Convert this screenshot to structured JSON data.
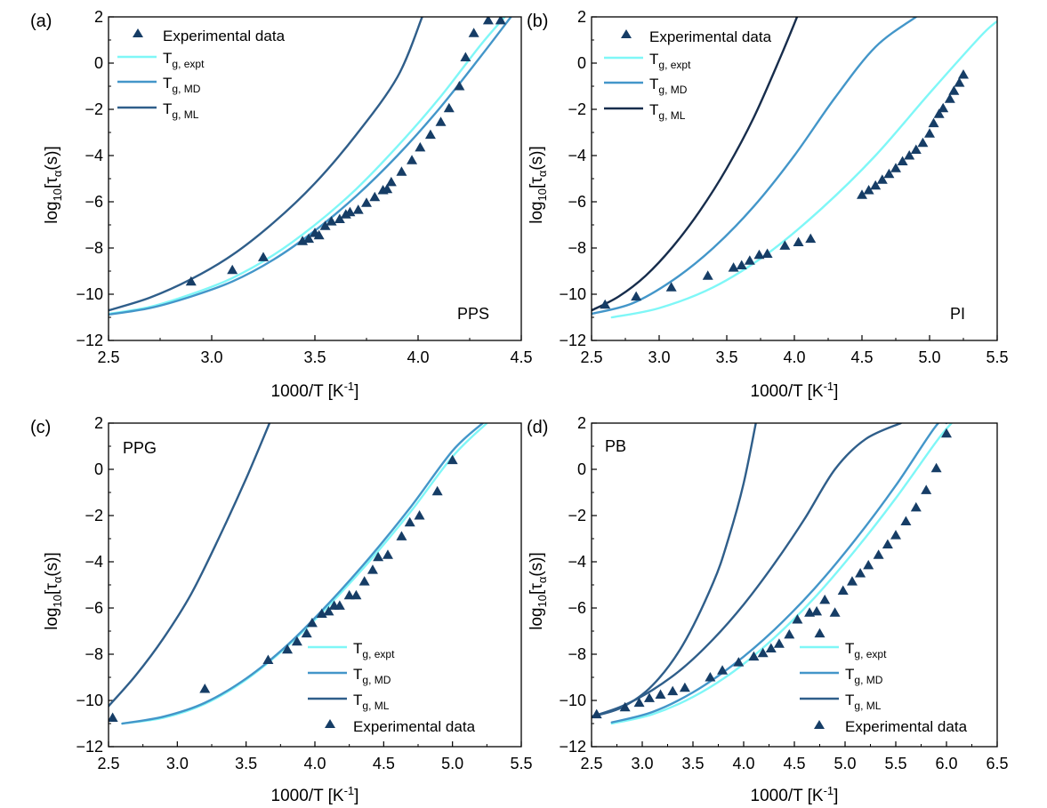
{
  "colors": {
    "expt": "#7ff7f7",
    "md": "#4396c9",
    "ml_a": "#2f5e8a",
    "ml_b": "#172d4c",
    "ml_c": "#2f5e8a",
    "ml_d": "#2f5e8a",
    "marker": "#163d66"
  },
  "chart_data": [
    {
      "type": "scatter",
      "panel_label": "(a)",
      "sample": "PPS",
      "xlabel": "1000/T [K⁻¹]",
      "ylabel": "log₁₀[τα(s)]",
      "xlim": [
        2.5,
        4.5
      ],
      "ylim": [
        -12,
        2
      ],
      "xticks": [
        2.5,
        3.0,
        3.5,
        4.0,
        4.5
      ],
      "xtick_labels": [
        "2.5",
        "3.0",
        "3.5",
        "4.0",
        "4.5"
      ],
      "yticks": [
        -12,
        -10,
        -8,
        -6,
        -4,
        -2,
        0,
        2
      ],
      "ytick_labels": [
        "−12",
        "−10",
        "−8",
        "−6",
        "−4",
        "−2",
        "0",
        "2"
      ],
      "legend_position": "top-left",
      "legend_order": [
        "scatter",
        "expt",
        "md",
        "ml"
      ],
      "legend": {
        "scatter": "Experimental data",
        "expt_main": "T",
        "expt_sub": "g, expt",
        "md_main": "T",
        "md_sub": "g, MD",
        "ml_main": "T",
        "ml_sub": "g, ML"
      },
      "scatter": {
        "name": "Experimental data",
        "x": [
          2.9,
          3.1,
          3.25,
          3.44,
          3.47,
          3.5,
          3.52,
          3.55,
          3.58,
          3.62,
          3.65,
          3.67,
          3.71,
          3.75,
          3.79,
          3.83,
          3.85,
          3.87,
          3.92,
          3.97,
          4.01,
          4.06,
          4.11,
          4.15,
          4.2,
          4.23,
          4.27,
          4.34,
          4.4
        ],
        "y": [
          -9.45,
          -8.95,
          -8.4,
          -7.7,
          -7.6,
          -7.35,
          -7.45,
          -7.05,
          -6.85,
          -6.75,
          -6.55,
          -6.45,
          -6.35,
          -6.05,
          -5.8,
          -5.5,
          -5.45,
          -5.15,
          -4.7,
          -4.2,
          -3.65,
          -3.1,
          -2.55,
          -1.95,
          -1.0,
          0.25,
          1.3,
          1.85,
          1.85
        ]
      },
      "series": [
        {
          "name": "T_g,expt",
          "color_key": "expt",
          "x": [
            2.5,
            2.7,
            2.9,
            3.1,
            3.3,
            3.5,
            3.7,
            3.9,
            4.1,
            4.3,
            4.42
          ],
          "y": [
            -10.85,
            -10.55,
            -10.0,
            -9.3,
            -8.3,
            -7.0,
            -5.45,
            -3.6,
            -1.55,
            0.75,
            2.0
          ]
        },
        {
          "name": "T_g,MD",
          "color_key": "md",
          "x": [
            2.5,
            2.7,
            2.9,
            3.1,
            3.3,
            3.5,
            3.7,
            3.9,
            4.1,
            4.3,
            4.45
          ],
          "y": [
            -10.88,
            -10.6,
            -10.1,
            -9.45,
            -8.5,
            -7.25,
            -5.75,
            -4.0,
            -2.0,
            0.25,
            2.0
          ]
        },
        {
          "name": "T_g,ML",
          "color_key": "ml_a",
          "x": [
            2.5,
            2.7,
            2.9,
            3.1,
            3.3,
            3.5,
            3.7,
            3.9,
            4.02
          ],
          "y": [
            -10.7,
            -10.15,
            -9.35,
            -8.3,
            -6.9,
            -5.2,
            -3.1,
            -0.6,
            2.0
          ]
        }
      ]
    },
    {
      "type": "scatter",
      "panel_label": "(b)",
      "sample": "PI",
      "xlabel": "1000/T [K⁻¹]",
      "ylabel": "log₁₀[τα(s)]",
      "xlim": [
        2.5,
        5.5
      ],
      "ylim": [
        -12,
        2
      ],
      "xticks": [
        2.5,
        3.0,
        3.5,
        4.0,
        4.5,
        5.0,
        5.5
      ],
      "xtick_labels": [
        "2.5",
        "3.0",
        "3.5",
        "4.0",
        "4.5",
        "5.0",
        "5.5"
      ],
      "yticks": [
        -12,
        -10,
        -8,
        -6,
        -4,
        -2,
        0,
        2
      ],
      "ytick_labels": [
        "−12",
        "−10",
        "−8",
        "−6",
        "−4",
        "−2",
        "0",
        "2"
      ],
      "legend_position": "top-left",
      "legend_order": [
        "scatter",
        "expt",
        "md",
        "ml"
      ],
      "legend": {
        "scatter": "Experimental data",
        "expt_main": "T",
        "expt_sub": "g, expt",
        "md_main": "T",
        "md_sub": "g, MD",
        "ml_main": "T",
        "ml_sub": "g, ML"
      },
      "scatter": {
        "name": "Experimental data",
        "x": [
          2.6,
          2.83,
          3.09,
          3.36,
          3.55,
          3.61,
          3.67,
          3.74,
          3.8,
          3.93,
          4.03,
          4.12,
          4.5,
          4.55,
          4.6,
          4.65,
          4.7,
          4.75,
          4.8,
          4.85,
          4.9,
          4.95,
          5.0,
          5.03,
          5.07,
          5.1,
          5.15,
          5.18,
          5.22,
          5.25
        ],
        "y": [
          -10.45,
          -10.1,
          -9.7,
          -9.2,
          -8.85,
          -8.75,
          -8.55,
          -8.3,
          -8.25,
          -7.9,
          -7.75,
          -7.6,
          -5.7,
          -5.5,
          -5.3,
          -5.05,
          -4.8,
          -4.55,
          -4.25,
          -4.0,
          -3.75,
          -3.45,
          -3.05,
          -2.6,
          -2.2,
          -1.95,
          -1.55,
          -1.2,
          -0.85,
          -0.5
        ]
      },
      "series": [
        {
          "name": "T_g,expt",
          "color_key": "expt",
          "x": [
            2.65,
            3.0,
            3.4,
            3.8,
            4.2,
            4.6,
            5.0,
            5.4,
            5.55
          ],
          "y": [
            -11.0,
            -10.6,
            -9.7,
            -8.25,
            -6.3,
            -4.0,
            -1.3,
            1.3,
            2.0
          ]
        },
        {
          "name": "T_g,MD",
          "color_key": "md",
          "x": [
            2.5,
            2.8,
            3.1,
            3.4,
            3.7,
            4.0,
            4.3,
            4.6,
            4.9
          ],
          "y": [
            -10.85,
            -10.4,
            -9.4,
            -8.0,
            -6.2,
            -4.0,
            -1.5,
            0.7,
            2.0
          ]
        },
        {
          "name": "T_g,ML",
          "color_key": "ml_b",
          "x": [
            2.5,
            2.7,
            2.9,
            3.1,
            3.3,
            3.5,
            3.7,
            3.9,
            4.02
          ],
          "y": [
            -10.7,
            -10.1,
            -9.2,
            -7.95,
            -6.4,
            -4.55,
            -2.35,
            0.3,
            2.0
          ]
        }
      ]
    },
    {
      "type": "scatter",
      "panel_label": "(c)",
      "sample": "PPG",
      "xlabel": "1000/T [K⁻¹]",
      "ylabel": "log₁₀[τα(s)]",
      "xlim": [
        2.5,
        5.5
      ],
      "ylim": [
        -12,
        2
      ],
      "xticks": [
        2.5,
        3.0,
        3.5,
        4.0,
        4.5,
        5.0,
        5.5
      ],
      "xtick_labels": [
        "2.5",
        "3.0",
        "3.5",
        "4.0",
        "4.5",
        "5.0",
        "5.5"
      ],
      "yticks": [
        -12,
        -10,
        -8,
        -6,
        -4,
        -2,
        0,
        2
      ],
      "ytick_labels": [
        "−12",
        "−10",
        "−8",
        "−6",
        "−4",
        "−2",
        "0",
        "2"
      ],
      "legend_position": "bottom-right",
      "legend_order": [
        "expt",
        "md",
        "ml",
        "scatter"
      ],
      "legend": {
        "scatter": "Experimental data",
        "expt_main": "T",
        "expt_sub": "g, expt",
        "md_main": "T",
        "md_sub": "g, MD",
        "ml_main": "T",
        "ml_sub": "g, ML"
      },
      "scatter": {
        "name": "Experimental data",
        "x": [
          2.53,
          3.2,
          3.66,
          3.8,
          3.87,
          3.94,
          3.98,
          4.05,
          4.1,
          4.14,
          4.18,
          4.25,
          4.3,
          4.36,
          4.42,
          4.46,
          4.53,
          4.63,
          4.69,
          4.76,
          4.89,
          5.0
        ],
        "y": [
          -10.75,
          -9.5,
          -8.25,
          -7.8,
          -7.45,
          -7.1,
          -6.65,
          -6.25,
          -6.15,
          -5.9,
          -5.9,
          -5.45,
          -5.45,
          -4.85,
          -4.35,
          -3.8,
          -3.7,
          -2.9,
          -2.3,
          -2.0,
          -0.95,
          0.4
        ]
      },
      "series": [
        {
          "name": "T_g,expt",
          "color_key": "expt",
          "x": [
            2.6,
            2.9,
            3.2,
            3.5,
            3.8,
            4.1,
            4.4,
            4.7,
            5.0,
            5.25
          ],
          "y": [
            -11.0,
            -10.75,
            -10.15,
            -9.1,
            -7.65,
            -5.9,
            -3.95,
            -1.8,
            0.55,
            2.0
          ]
        },
        {
          "name": "T_g,MD",
          "color_key": "md",
          "x": [
            2.6,
            2.9,
            3.2,
            3.5,
            3.8,
            4.1,
            4.4,
            4.7,
            5.0,
            5.22
          ],
          "y": [
            -11.0,
            -10.7,
            -10.1,
            -9.05,
            -7.6,
            -5.8,
            -3.8,
            -1.6,
            0.8,
            2.0
          ]
        },
        {
          "name": "T_g,ML",
          "color_key": "ml_c",
          "x": [
            2.5,
            2.7,
            2.9,
            3.1,
            3.3,
            3.5,
            3.67
          ],
          "y": [
            -10.25,
            -8.9,
            -7.3,
            -5.4,
            -3.0,
            -0.4,
            2.0
          ]
        }
      ]
    },
    {
      "type": "scatter",
      "panel_label": "(d)",
      "sample": "PB",
      "xlabel": "1000/T [K⁻¹]",
      "ylabel": "log₁₀[τα(s)]",
      "xlim": [
        2.5,
        6.5
      ],
      "ylim": [
        -12,
        2
      ],
      "xticks": [
        2.5,
        3.0,
        3.5,
        4.0,
        4.5,
        5.0,
        5.5,
        6.0,
        6.5
      ],
      "xtick_labels": [
        "2.5",
        "3.0",
        "3.5",
        "4.0",
        "4.5",
        "5.0",
        "5.5",
        "6.0",
        "6.5"
      ],
      "yticks": [
        -12,
        -10,
        -8,
        -6,
        -4,
        -2,
        0,
        2
      ],
      "ytick_labels": [
        "−12",
        "−10",
        "−8",
        "−6",
        "−4",
        "−2",
        "0",
        "2"
      ],
      "legend_position": "bottom-right",
      "legend_order": [
        "expt",
        "md",
        "ml",
        "scatter"
      ],
      "legend": {
        "scatter": "Experimental data",
        "expt_main": "T",
        "expt_sub": "g, expt",
        "md_main": "T",
        "md_sub": "g, MD",
        "ml_main": "T",
        "ml_sub": "g, ML"
      },
      "scatter": {
        "name": "Experimental data",
        "x": [
          2.55,
          2.83,
          2.97,
          3.07,
          3.18,
          3.3,
          3.42,
          3.67,
          3.79,
          3.95,
          4.1,
          4.19,
          4.27,
          4.35,
          4.45,
          4.53,
          4.65,
          4.72,
          4.8,
          4.9,
          4.98,
          5.07,
          5.15,
          5.23,
          5.33,
          5.42,
          5.5,
          5.6,
          5.7,
          5.8,
          5.9,
          6.0,
          4.75
        ],
        "y": [
          -10.6,
          -10.3,
          -10.1,
          -9.9,
          -9.75,
          -9.6,
          -9.45,
          -9.0,
          -8.7,
          -8.35,
          -8.1,
          -7.95,
          -7.75,
          -7.55,
          -7.15,
          -6.5,
          -6.2,
          -6.15,
          -5.65,
          -6.2,
          -5.25,
          -4.85,
          -4.5,
          -4.15,
          -3.7,
          -3.25,
          -2.85,
          -2.25,
          -1.65,
          -0.9,
          0.05,
          1.55,
          -7.1
        ]
      },
      "series": [
        {
          "name": "T_g,expt",
          "color_key": "expt",
          "x": [
            2.7,
            3.1,
            3.5,
            3.9,
            4.3,
            4.7,
            5.1,
            5.5,
            5.9,
            6.05
          ],
          "y": [
            -11.0,
            -10.6,
            -9.85,
            -8.75,
            -7.3,
            -5.55,
            -3.5,
            -1.25,
            1.2,
            2.0
          ]
        },
        {
          "name": "T_g,MD",
          "color_key": "md",
          "x": [
            2.7,
            3.1,
            3.5,
            3.9,
            4.3,
            4.7,
            5.1,
            5.5,
            5.9,
            6.0
          ],
          "y": [
            -10.95,
            -10.5,
            -9.65,
            -8.45,
            -6.95,
            -5.15,
            -3.05,
            -0.7,
            1.9,
            2.0
          ]
        },
        {
          "name": "T_g,ML",
          "color_key": "ml_d",
          "x": [
            2.5,
            2.8,
            3.1,
            3.4,
            3.7,
            4.0,
            4.3,
            4.6,
            4.9,
            5.2,
            5.55
          ],
          "y": [
            -10.7,
            -10.25,
            -9.55,
            -8.6,
            -7.35,
            -5.85,
            -4.1,
            -2.15,
            0.0,
            1.3,
            2.0
          ]
        },
        {
          "name": "T_g,ML_steep",
          "color_key": "ml_d",
          "x": [
            2.5,
            2.8,
            3.1,
            3.4,
            3.7,
            3.85,
            4.0,
            4.12
          ],
          "y": [
            -10.7,
            -10.3,
            -9.35,
            -7.6,
            -4.9,
            -3.0,
            -0.6,
            2.0
          ]
        }
      ]
    }
  ]
}
